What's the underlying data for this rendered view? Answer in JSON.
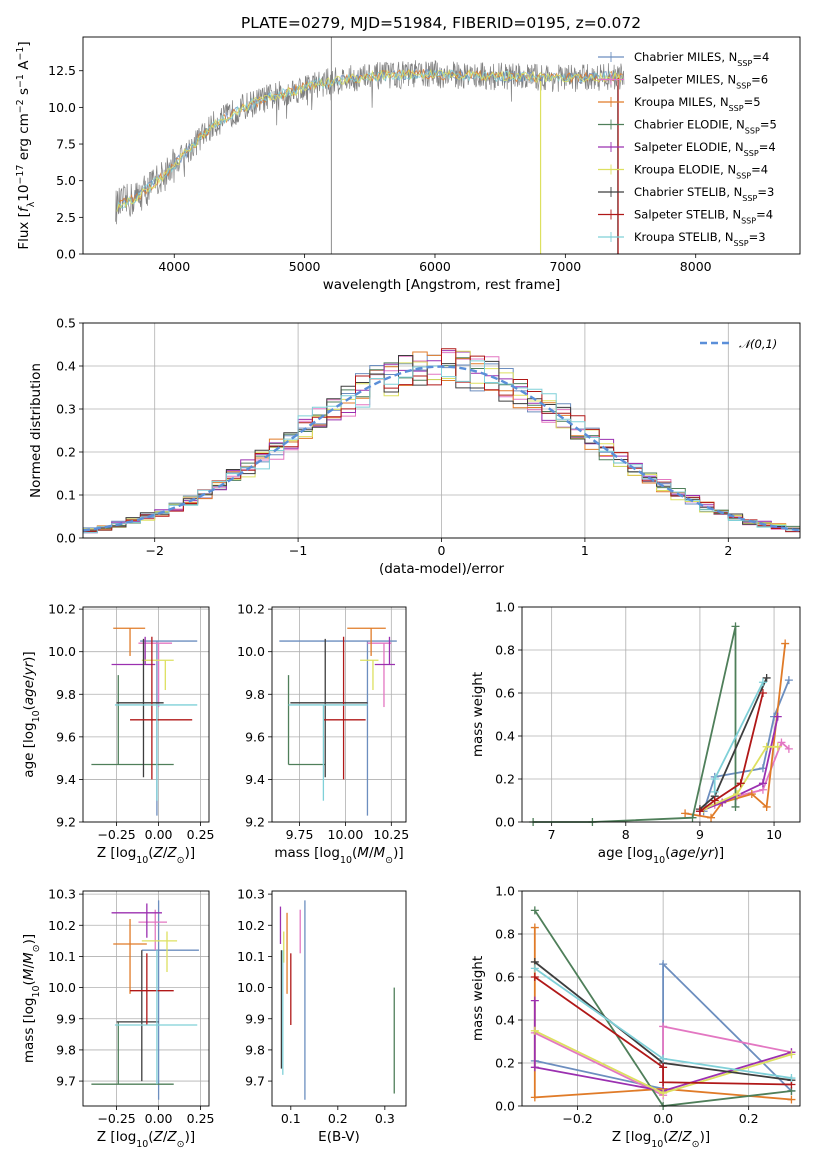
{
  "figure": {
    "title": "PLATE=0279, MJD=51984, FIBERID=0195, z=0.072"
  },
  "legend_models": [
    {
      "label": "Chabrier MILES, N_SSP=4",
      "color": "#6c8ebf"
    },
    {
      "label": "Salpeter MILES, N_SSP=6",
      "color": "#e377c2"
    },
    {
      "label": "Kroupa MILES, N_SSP=5",
      "color": "#e07b28"
    },
    {
      "label": "Chabrier ELODIE, N_SSP=5",
      "color": "#4f7f5a"
    },
    {
      "label": "Salpeter ELODIE, N_SSP=4",
      "color": "#9b30b0"
    },
    {
      "label": "Kroupa ELODIE, N_SSP=4",
      "color": "#dde060"
    },
    {
      "label": "Chabrier STELIB, N_SSP=3",
      "color": "#3d3d3d"
    },
    {
      "label": "Salpeter STELIB, N_SSP=4",
      "color": "#b01818"
    },
    {
      "label": "Kroupa STELIB, N_SSP=3",
      "color": "#7fd0d8"
    }
  ],
  "chart_data": [
    {
      "id": "spectrum",
      "type": "line",
      "title": "PLATE=0279, MJD=51984, FIBERID=0195, z=0.072",
      "xlabel": "wavelength [Angstrom, rest frame]",
      "ylabel": "Flux [f_λ 10^-17 erg cm^-2 s^-1 A^-1]",
      "xlim": [
        3300,
        8800
      ],
      "ylim": [
        0,
        14.8
      ],
      "xticks": [
        4000,
        5000,
        6000,
        7000,
        8000
      ],
      "yticks": [
        "0.0",
        "2.5",
        "5.0",
        "7.5",
        "10.0",
        "12.5"
      ],
      "grid": false,
      "legend": "top-right",
      "data_trend": {
        "x": [
          3550,
          3700,
          3900,
          4100,
          4300,
          4500,
          4700,
          4900,
          5100,
          5300,
          5500,
          5700,
          5900,
          6100,
          6300,
          6500,
          6700,
          6900,
          7100,
          7300,
          7500
        ],
        "y": [
          3.2,
          3.8,
          5.2,
          7.0,
          8.8,
          9.9,
          10.6,
          11.1,
          11.6,
          11.9,
          12.1,
          12.2,
          12.3,
          12.2,
          12.2,
          12.1,
          12.1,
          12.0,
          12.0,
          12.1,
          12.1
        ]
      }
    },
    {
      "id": "residuals",
      "type": "line",
      "xlabel": "(data-model)/error",
      "ylabel": "Normed distribution",
      "xlim": [
        -2.5,
        2.5
      ],
      "ylim": [
        0,
        0.5
      ],
      "xticks": [
        "−2",
        "−1",
        "0",
        "1",
        "2"
      ],
      "yticks": [
        "0.0",
        "0.1",
        "0.2",
        "0.3",
        "0.4",
        "0.5"
      ],
      "grid": true,
      "legend": "top-right",
      "reference_label": "𝒩(0,1)",
      "reference_color": "#5b8fd9",
      "hist_bin_width": 0.1
    },
    {
      "id": "age-vs-Z",
      "type": "scatter",
      "xlabel": "Z [log10(Z/Z⊙)]",
      "ylabel": "age  [log10(age/yr)]",
      "xlim": [
        -0.45,
        0.3
      ],
      "ylim": [
        9.2,
        10.21
      ],
      "xticks": [
        "−0.25",
        "0.00",
        "0.25"
      ],
      "yticks": [
        "9.2",
        "9.4",
        "9.6",
        "9.8",
        "10.0",
        "10.2"
      ],
      "grid": true,
      "points": [
        {
          "model": 0,
          "x": -0.01,
          "xerr": [
            0.1,
            0.24
          ],
          "y": 10.05,
          "yerr": [
            0.82,
            0.0
          ]
        },
        {
          "model": 1,
          "x": 0.0,
          "xerr": [
            0.12,
            0.08
          ],
          "y": 10.04,
          "yerr": [
            0.3,
            0.0
          ]
        },
        {
          "model": 2,
          "x": -0.17,
          "xerr": [
            0.1,
            0.09
          ],
          "y": 10.11,
          "yerr": [
            0.13,
            0.0
          ]
        },
        {
          "model": 3,
          "x": -0.24,
          "xerr": [
            0.16,
            0.33
          ],
          "y": 9.47,
          "yerr": [
            0.0,
            0.42
          ]
        },
        {
          "model": 4,
          "x": -0.08,
          "xerr": [
            0.2,
            0.06
          ],
          "y": 9.94,
          "yerr": [
            0.0,
            0.13
          ]
        },
        {
          "model": 5,
          "x": 0.04,
          "xerr": [
            0.14,
            0.05
          ],
          "y": 9.96,
          "yerr": [
            0.14,
            0.0
          ]
        },
        {
          "model": 6,
          "x": -0.09,
          "xerr": [
            0.16,
            0.12
          ],
          "y": 9.76,
          "yerr": [
            0.35,
            0.3
          ]
        },
        {
          "model": 7,
          "x": -0.04,
          "xerr": [
            0.13,
            0.24
          ],
          "y": 9.68,
          "yerr": [
            0.28,
            0.39
          ]
        },
        {
          "model": 8,
          "x": -0.01,
          "xerr": [
            0.25,
            0.24
          ],
          "y": 9.75,
          "yerr": [
            0.45,
            0.0
          ]
        }
      ]
    },
    {
      "id": "age-vs-mass",
      "type": "scatter",
      "xlabel": "mass [log10(M/M⊙)]",
      "ylabel": "",
      "xlim": [
        9.6,
        10.33
      ],
      "ylim": [
        9.2,
        10.21
      ],
      "xticks": [
        "9.75",
        "10.00",
        "10.25"
      ],
      "yticks": [
        "9.2",
        "9.4",
        "9.6",
        "9.8",
        "10.0",
        "10.2"
      ],
      "grid": true,
      "points": [
        {
          "model": 0,
          "x": 10.12,
          "xerr": [
            0.48,
            0.16
          ],
          "y": 10.05,
          "yerr": [
            0.82,
            0.0
          ]
        },
        {
          "model": 1,
          "x": 10.21,
          "xerr": [
            0.09,
            0.04
          ],
          "y": 10.04,
          "yerr": [
            0.3,
            0.0
          ]
        },
        {
          "model": 2,
          "x": 10.14,
          "xerr": [
            0.13,
            0.08
          ],
          "y": 10.11,
          "yerr": [
            0.13,
            0.0
          ]
        },
        {
          "model": 3,
          "x": 9.69,
          "xerr": [
            0.0,
            0.2
          ],
          "y": 9.47,
          "yerr": [
            0.0,
            0.42
          ]
        },
        {
          "model": 4,
          "x": 10.24,
          "xerr": [
            0.08,
            0.03
          ],
          "y": 9.94,
          "yerr": [
            0.0,
            0.13
          ]
        },
        {
          "model": 5,
          "x": 10.15,
          "xerr": [
            0.07,
            0.03
          ],
          "y": 9.96,
          "yerr": [
            0.14,
            0.0
          ]
        },
        {
          "model": 6,
          "x": 9.89,
          "xerr": [
            0.19,
            0.23
          ],
          "y": 9.76,
          "yerr": [
            0.35,
            0.3
          ]
        },
        {
          "model": 7,
          "x": 9.99,
          "xerr": [
            0.11,
            0.12
          ],
          "y": 9.68,
          "yerr": [
            0.28,
            0.39
          ]
        },
        {
          "model": 8,
          "x": 9.88,
          "xerr": [
            0.19,
            0.24
          ],
          "y": 9.75,
          "yerr": [
            0.45,
            0.0
          ]
        }
      ]
    },
    {
      "id": "mass-weight-vs-age",
      "type": "line",
      "xlabel": "age  [log10(age/yr)]",
      "ylabel": "mass weight",
      "xlim": [
        6.6,
        10.35
      ],
      "ylim": [
        0,
        1.0
      ],
      "xticks": [
        "7",
        "8",
        "9",
        "10"
      ],
      "yticks": [
        "0.0",
        "0.2",
        "0.4",
        "0.6",
        "0.8",
        "1.0"
      ],
      "grid": true,
      "series": [
        {
          "model": 0,
          "x": [
            9.05,
            9.2,
            9.85,
            10.0,
            10.2
          ],
          "y": [
            0.05,
            0.21,
            0.25,
            0.49,
            0.66
          ]
        },
        {
          "model": 1,
          "x": [
            9.2,
            9.5,
            9.85,
            10.1,
            10.2
          ],
          "y": [
            0.08,
            0.12,
            0.15,
            0.37,
            0.34
          ]
        },
        {
          "model": 2,
          "x": [
            8.8,
            9.15,
            9.3,
            9.7,
            9.9,
            10.15
          ],
          "y": [
            0.04,
            0.02,
            0.09,
            0.13,
            0.07,
            0.83
          ]
        },
        {
          "model": 3,
          "x": [
            6.75,
            7.55,
            8.9,
            9.48,
            9.48
          ],
          "y": [
            0.0,
            0.0,
            0.02,
            0.91,
            0.07
          ]
        },
        {
          "model": 4,
          "x": [
            9.0,
            9.3,
            9.85,
            10.05
          ],
          "y": [
            0.05,
            0.09,
            0.18,
            0.49
          ]
        },
        {
          "model": 5,
          "x": [
            9.05,
            9.5,
            9.9,
            10.05
          ],
          "y": [
            0.06,
            0.13,
            0.35,
            0.35
          ]
        },
        {
          "model": 6,
          "x": [
            9.0,
            9.2,
            9.9
          ],
          "y": [
            0.06,
            0.12,
            0.67
          ]
        },
        {
          "model": 7,
          "x": [
            9.0,
            9.2,
            9.55,
            9.85
          ],
          "y": [
            0.05,
            0.1,
            0.18,
            0.6
          ]
        },
        {
          "model": 8,
          "x": [
            9.2,
            9.2,
            9.85
          ],
          "y": [
            0.14,
            0.2,
            0.65
          ]
        }
      ]
    },
    {
      "id": "mass-vs-Z",
      "type": "scatter",
      "xlabel": "Z [log10(Z/Z⊙)]",
      "ylabel": "mass [log10(M/M⊙)]",
      "xlim": [
        -0.45,
        0.3
      ],
      "ylim": [
        9.62,
        10.31
      ],
      "xticks": [
        "−0.25",
        "0.00",
        "0.25"
      ],
      "yticks": [
        "9.7",
        "9.8",
        "9.9",
        "10.0",
        "10.1",
        "10.2",
        "10.3"
      ],
      "grid": true,
      "points": [
        {
          "model": 0,
          "x": 0.0,
          "xerr": [
            0.1,
            0.24
          ],
          "y": 10.12,
          "yerr": [
            0.48,
            0.16
          ]
        },
        {
          "model": 1,
          "x": -0.02,
          "xerr": [
            0.1,
            0.07
          ],
          "y": 10.21,
          "yerr": [
            0.09,
            0.04
          ]
        },
        {
          "model": 2,
          "x": -0.17,
          "xerr": [
            0.1,
            0.1
          ],
          "y": 10.14,
          "yerr": [
            0.16,
            0.08
          ]
        },
        {
          "model": 3,
          "x": -0.24,
          "xerr": [
            0.16,
            0.33
          ],
          "y": 9.69,
          "yerr": [
            0.0,
            0.2
          ]
        },
        {
          "model": 4,
          "x": -0.07,
          "xerr": [
            0.21,
            0.09
          ],
          "y": 10.24,
          "yerr": [
            0.08,
            0.03
          ]
        },
        {
          "model": 5,
          "x": 0.05,
          "xerr": [
            0.15,
            0.06
          ],
          "y": 10.15,
          "yerr": [
            0.1,
            0.03
          ]
        },
        {
          "model": 6,
          "x": -0.1,
          "xerr": [
            0.15,
            0.1
          ],
          "y": 9.89,
          "yerr": [
            0.19,
            0.23
          ]
        },
        {
          "model": 7,
          "x": -0.07,
          "xerr": [
            0.1,
            0.16
          ],
          "y": 9.99,
          "yerr": [
            0.11,
            0.12
          ]
        },
        {
          "model": 8,
          "x": -0.01,
          "xerr": [
            0.25,
            0.24
          ],
          "y": 9.88,
          "yerr": [
            0.19,
            0.24
          ]
        }
      ]
    },
    {
      "id": "mass-vs-EBV",
      "type": "scatter",
      "xlabel": "E(B-V)",
      "ylabel": "",
      "xlim": [
        0.06,
        0.345
      ],
      "ylim": [
        9.62,
        10.31
      ],
      "xticks": [
        "0.1",
        "0.2",
        "0.3"
      ],
      "yticks": [
        "9.7",
        "9.8",
        "9.9",
        "10.0",
        "10.1",
        "10.2",
        "10.3"
      ],
      "grid": false,
      "points": [
        {
          "model": 0,
          "x": 0.13,
          "y": 10.12,
          "yerr": [
            0.48,
            0.16
          ]
        },
        {
          "model": 1,
          "x": 0.12,
          "y": 10.21,
          "yerr": [
            0.1,
            0.04
          ]
        },
        {
          "model": 2,
          "x": 0.092,
          "y": 10.14,
          "yerr": [
            0.16,
            0.1
          ]
        },
        {
          "model": 3,
          "x": 0.32,
          "y": 9.69,
          "yerr": [
            0.03,
            0.31
          ]
        },
        {
          "model": 4,
          "x": 0.078,
          "y": 10.24,
          "yerr": [
            0.1,
            0.02
          ]
        },
        {
          "model": 5,
          "x": 0.085,
          "y": 10.15,
          "yerr": [
            0.07,
            0.03
          ]
        },
        {
          "model": 6,
          "x": 0.08,
          "y": 9.89,
          "yerr": [
            0.15,
            0.23
          ]
        },
        {
          "model": 7,
          "x": 0.1,
          "y": 9.99,
          "yerr": [
            0.11,
            0.12
          ]
        },
        {
          "model": 8,
          "x": 0.083,
          "y": 9.88,
          "yerr": [
            0.16,
            0.24
          ]
        }
      ]
    },
    {
      "id": "mass-weight-vs-Z",
      "type": "line",
      "xlabel": "Z [log10(Z/Z⊙)]",
      "ylabel": "mass weight",
      "xlim": [
        -0.33,
        0.32
      ],
      "ylim": [
        0,
        1.0
      ],
      "xticks": [
        "−0.2",
        "0.0",
        "0.2"
      ],
      "yticks": [
        "0.0",
        "0.2",
        "0.4",
        "0.6",
        "0.8",
        "1.0"
      ],
      "grid": true,
      "series": [
        {
          "model": 0,
          "x": [
            -0.3,
            0.0,
            0.0,
            0.3
          ],
          "y": [
            0.21,
            0.08,
            0.66,
            0.07
          ]
        },
        {
          "model": 1,
          "x": [
            -0.3,
            0.0,
            0.0,
            0.3
          ],
          "y": [
            0.34,
            0.05,
            0.37,
            0.25
          ]
        },
        {
          "model": 2,
          "x": [
            -0.3,
            -0.3,
            0.0,
            0.3
          ],
          "y": [
            0.83,
            0.04,
            0.08,
            0.03
          ]
        },
        {
          "model": 3,
          "x": [
            -0.3,
            0.0,
            0.3
          ],
          "y": [
            0.91,
            0.0,
            0.07
          ]
        },
        {
          "model": 4,
          "x": [
            -0.3,
            -0.3,
            0.0,
            0.3
          ],
          "y": [
            0.49,
            0.18,
            0.07,
            0.25
          ]
        },
        {
          "model": 5,
          "x": [
            -0.3,
            0.0,
            0.3
          ],
          "y": [
            0.35,
            0.06,
            0.24
          ]
        },
        {
          "model": 6,
          "x": [
            -0.3,
            0.0,
            0.3
          ],
          "y": [
            0.67,
            0.2,
            0.12
          ]
        },
        {
          "model": 7,
          "x": [
            -0.3,
            0.0,
            0.0,
            0.3
          ],
          "y": [
            0.6,
            0.18,
            0.11,
            0.1
          ]
        },
        {
          "model": 8,
          "x": [
            -0.3,
            0.0,
            0.3
          ],
          "y": [
            0.64,
            0.22,
            0.13
          ]
        }
      ]
    }
  ]
}
